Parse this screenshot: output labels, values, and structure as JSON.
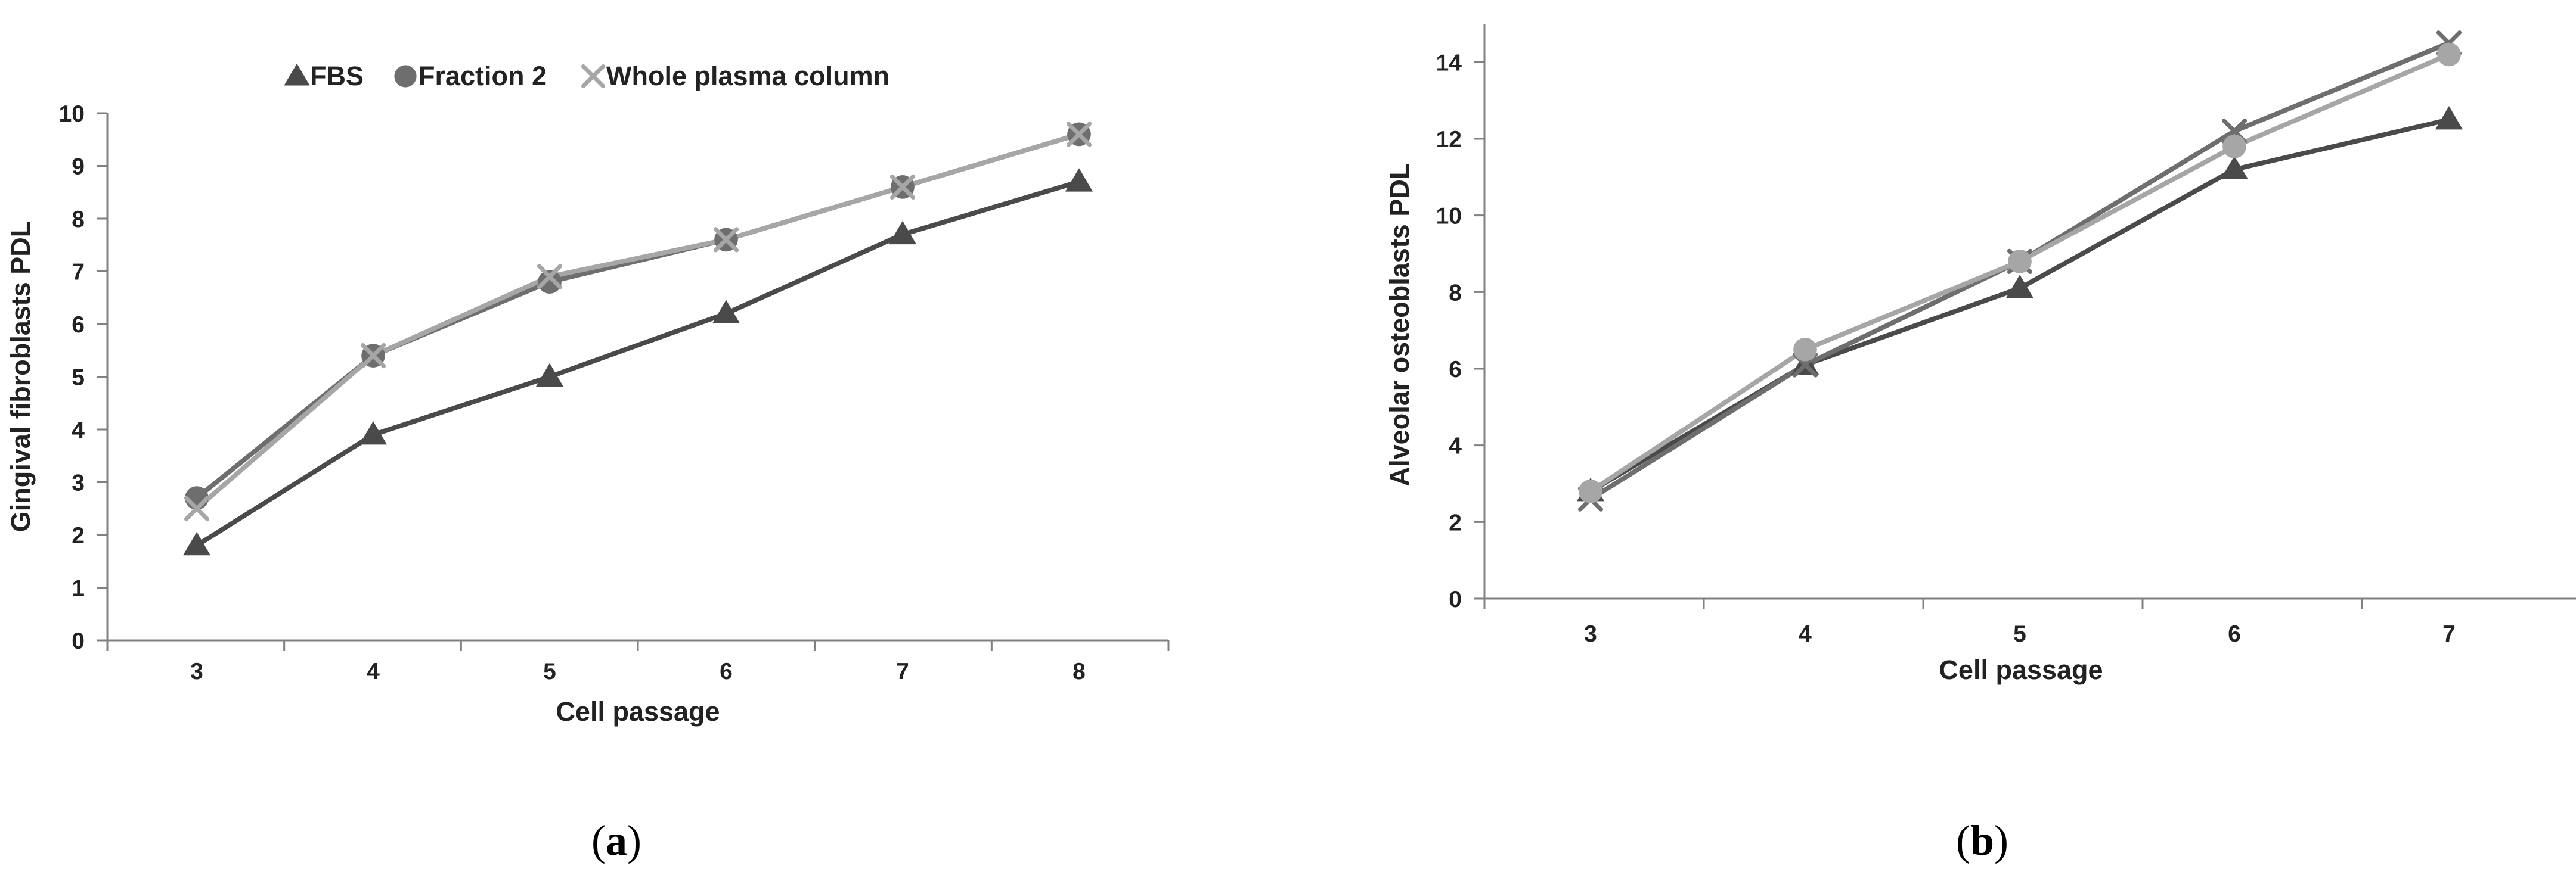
{
  "colors": {
    "FBS": "#4a4a4a",
    "Fraction 2": "#6e6e6e",
    "Whole plasma column": "#a6a6a6",
    "axis": "#808080",
    "text": "#222222"
  },
  "panels": {
    "a": {
      "open": "(",
      "letter": "a",
      "close": ")"
    },
    "b": {
      "open": "(",
      "letter": "b",
      "close": ")"
    }
  },
  "chart_data": [
    {
      "type": "line",
      "panel": "a",
      "xlabel": "Cell passage",
      "ylabel": "Gingival fibroblasts PDL",
      "categories": [
        "3",
        "4",
        "5",
        "6",
        "7",
        "8"
      ],
      "yticks": [
        "0",
        "1",
        "2",
        "3",
        "4",
        "5",
        "6",
        "7",
        "8",
        "9",
        "10"
      ],
      "ylim": [
        0,
        10
      ],
      "grid": false,
      "legend": "top",
      "series": [
        {
          "name": "FBS",
          "marker": "triangle",
          "values": [
            1.8,
            3.9,
            5.0,
            6.2,
            7.7,
            8.7
          ]
        },
        {
          "name": "Fraction 2",
          "marker": "circle",
          "values": [
            2.7,
            5.4,
            6.8,
            7.6,
            8.6,
            9.6
          ]
        },
        {
          "name": "Whole plasma column",
          "marker": "cross",
          "values": [
            2.5,
            5.4,
            6.9,
            7.6,
            8.6,
            9.6
          ]
        }
      ]
    },
    {
      "type": "line",
      "panel": "b",
      "xlabel": "Cell passage",
      "ylabel": "Alveolar osteoblasts  PDL",
      "categories": [
        "3",
        "4",
        "5",
        "6",
        "7"
      ],
      "yticks": [
        "0",
        "2",
        "4",
        "6",
        "8",
        "10",
        "12",
        "14"
      ],
      "ylim": [
        0,
        15
      ],
      "grid": false,
      "legend": "none",
      "series": [
        {
          "name": "FBS",
          "marker": "triangle",
          "values": [
            2.8,
            6.1,
            8.1,
            11.2,
            12.5
          ]
        },
        {
          "name": "Fraction 2",
          "marker": "cross",
          "values": [
            2.6,
            6.1,
            8.8,
            12.2,
            14.5
          ]
        },
        {
          "name": "Whole plasma column",
          "marker": "circle",
          "values": [
            2.8,
            6.5,
            8.8,
            11.8,
            14.2
          ]
        }
      ]
    }
  ]
}
